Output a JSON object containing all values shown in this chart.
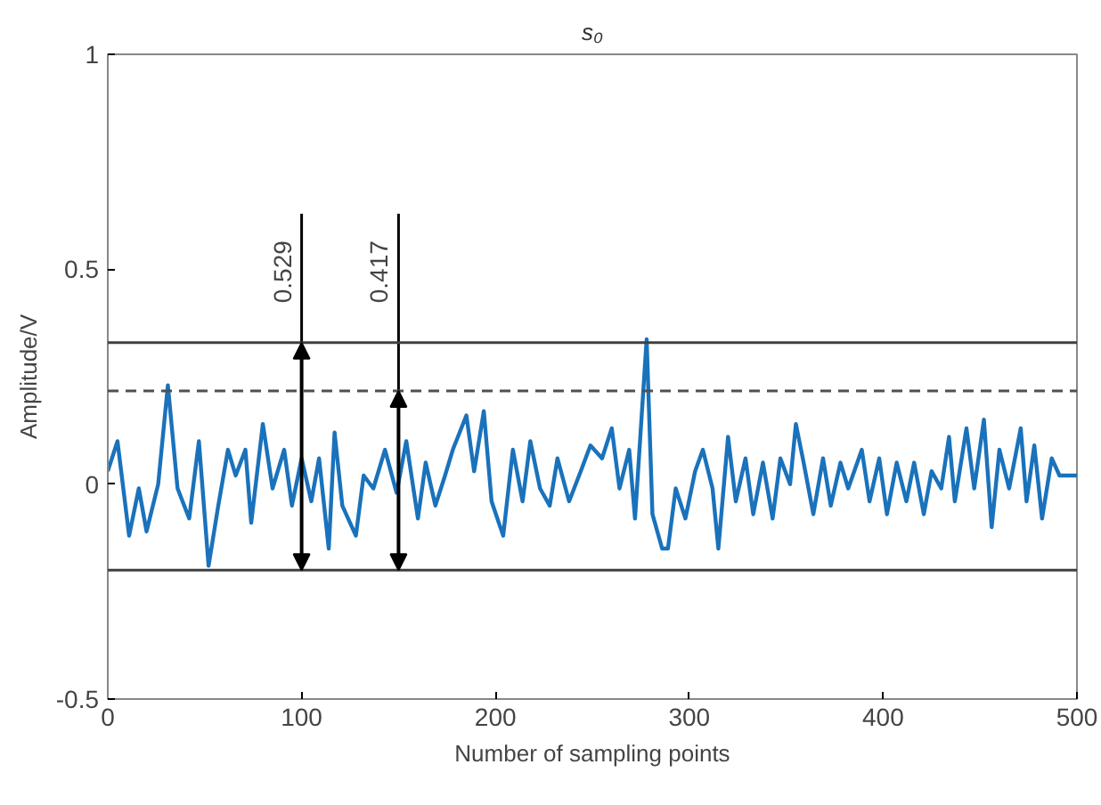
{
  "chart_data": {
    "type": "line",
    "title": "s₀",
    "xlabel": "Number of sampling points",
    "ylabel": "Amplitude/V",
    "xlim": [
      0,
      500
    ],
    "xticks": [
      0,
      100,
      200,
      300,
      400,
      500
    ],
    "ylim": [
      -0.5,
      1
    ],
    "yticks": [
      -0.5,
      0,
      0.5,
      1
    ],
    "grid": false,
    "series": [
      {
        "color": "#1a72bb",
        "x": [
          0,
          5,
          11,
          16,
          20,
          26,
          31,
          36,
          42,
          47,
          52,
          57,
          62,
          66,
          71,
          74,
          80,
          85,
          91,
          95,
          100,
          105,
          109,
          114,
          117,
          121,
          128,
          132,
          137,
          143,
          149,
          154,
          160,
          164,
          169,
          174,
          178,
          185,
          189,
          194,
          198,
          204,
          209,
          214,
          218,
          223,
          228,
          232,
          238,
          244,
          249,
          255,
          260,
          264,
          269,
          272,
          278,
          281,
          286,
          289,
          293,
          298,
          303,
          307,
          312,
          315,
          320,
          324,
          329,
          333,
          338,
          343,
          347,
          352,
          355,
          359,
          364,
          369,
          373,
          378,
          382,
          389,
          393,
          398,
          402,
          407,
          412,
          416,
          421,
          425,
          430,
          434,
          437,
          443,
          447,
          452,
          456,
          460,
          465,
          471,
          474,
          478,
          482,
          487,
          491,
          500
        ],
        "values": [
          0.03,
          0.1,
          -0.12,
          -0.01,
          -0.11,
          0.0,
          0.23,
          -0.01,
          -0.08,
          0.1,
          -0.19,
          -0.05,
          0.08,
          0.02,
          0.08,
          -0.09,
          0.14,
          -0.01,
          0.08,
          -0.05,
          0.06,
          -0.04,
          0.06,
          -0.15,
          0.12,
          -0.05,
          -0.12,
          0.02,
          -0.01,
          0.08,
          -0.02,
          0.1,
          -0.08,
          0.05,
          -0.05,
          0.02,
          0.08,
          0.16,
          0.03,
          0.17,
          -0.04,
          -0.12,
          0.08,
          -0.04,
          0.1,
          -0.01,
          -0.05,
          0.06,
          -0.04,
          0.03,
          0.09,
          0.06,
          0.13,
          -0.01,
          0.08,
          -0.08,
          0.337,
          -0.07,
          -0.15,
          -0.15,
          -0.01,
          -0.08,
          0.03,
          0.08,
          -0.01,
          -0.15,
          0.11,
          -0.04,
          0.06,
          -0.07,
          0.05,
          -0.08,
          0.06,
          0.0,
          0.14,
          0.05,
          -0.07,
          0.06,
          -0.05,
          0.05,
          -0.01,
          0.08,
          -0.04,
          0.06,
          -0.07,
          0.05,
          -0.04,
          0.05,
          -0.07,
          0.03,
          -0.01,
          0.11,
          -0.04,
          0.13,
          -0.01,
          0.15,
          -0.1,
          0.08,
          -0.01,
          0.13,
          -0.04,
          0.09,
          -0.08,
          0.06,
          0.02,
          0.02
        ]
      }
    ],
    "ref_lines": [
      {
        "axis": "y",
        "value": 0.329,
        "line_style": "solid",
        "color": "#404040"
      },
      {
        "axis": "y",
        "value": 0.217,
        "line_style": "dashed",
        "color": "#505050"
      },
      {
        "axis": "y",
        "value": -0.2,
        "line_style": "solid",
        "color": "#404040"
      }
    ],
    "annotations": [
      {
        "text": "0.529",
        "x": 100,
        "y": 0.329
      },
      {
        "text": "0.417",
        "x": 150,
        "y": 0.217
      }
    ]
  }
}
